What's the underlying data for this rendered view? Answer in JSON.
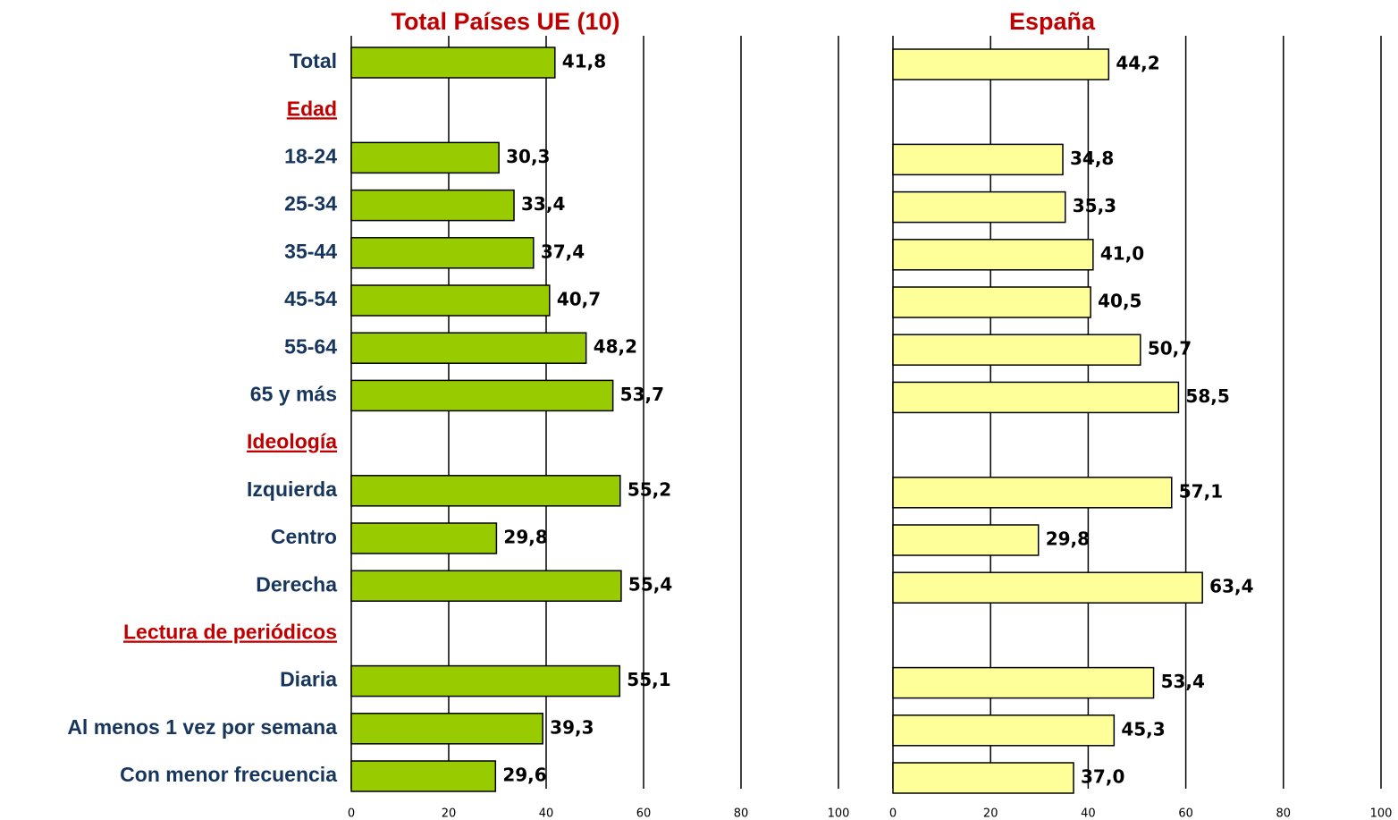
{
  "chart_data": [
    {
      "type": "bar",
      "title": "Total Países UE (10)",
      "categories": [
        "Total",
        "Edad",
        "18-24",
        "25-34",
        "35-44",
        "45-54",
        "55-64",
        "65 y más",
        "Ideología",
        "Izquierda",
        "Centro",
        "Derecha",
        "Lectura de periódicos",
        "Diaria",
        "Al menos 1 vez por semana",
        "Con menor frecuencia"
      ],
      "values": [
        41.8,
        null,
        30.3,
        33.4,
        37.4,
        40.7,
        48.2,
        53.7,
        null,
        55.2,
        29.8,
        55.4,
        null,
        55.1,
        39.3,
        29.6
      ],
      "value_labels": [
        "41,8",
        null,
        "30,3",
        "33,4",
        "37,4",
        "40,7",
        "48,2",
        "53,7",
        null,
        "55,2",
        "29,8",
        "55,4",
        null,
        "55,1",
        "39,3",
        "29,6"
      ],
      "color": "#99cc00",
      "xlim": [
        0,
        100
      ],
      "xticks": [
        0,
        20,
        40,
        60,
        80,
        100
      ],
      "grid": true
    },
    {
      "type": "bar",
      "title": "España",
      "values": [
        44.2,
        null,
        34.8,
        35.3,
        41.0,
        40.5,
        50.7,
        58.5,
        null,
        57.1,
        29.8,
        63.4,
        null,
        53.4,
        45.3,
        37.0
      ],
      "value_labels": [
        "44,2",
        null,
        "34,8",
        "35,3",
        "41,0",
        "40,5",
        "50,7",
        "58,5",
        null,
        "57,1",
        "29,8",
        "63,4",
        null,
        "53,4",
        "45,3",
        "37,0"
      ],
      "color": "#ffff99",
      "xlim": [
        0,
        100
      ],
      "xticks": [
        0,
        20,
        40,
        60,
        80,
        100
      ],
      "grid": true
    }
  ]
}
